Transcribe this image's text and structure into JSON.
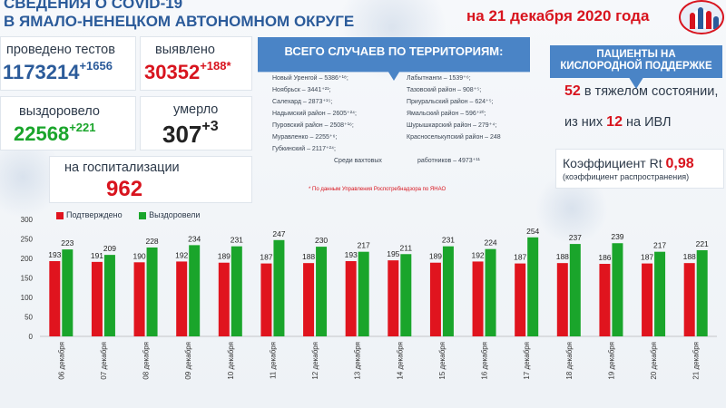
{
  "header": {
    "title_line1": "СВЕДЕНИЯ О COVID-19",
    "title_line2": "В ЯМАЛО-НЕНЕЦКОМ АВТОНОМНОМ ОКРУГЕ",
    "date": "на 21 декабря 2020 года"
  },
  "stats": {
    "tests_label": "проведено тестов",
    "tests_value": "1173214",
    "tests_delta": "+1656",
    "detected_label": "выявлено",
    "detected_value": "30352",
    "detected_delta": "+188*",
    "recovered_label": "выздоровело",
    "recovered_value": "22568",
    "recovered_delta": "+221",
    "died_label": "умерло",
    "died_value": "307",
    "died_delta": "+3",
    "hosp_label": "на госпитализации",
    "hosp_value": "962"
  },
  "territories": {
    "title": "ВСЕГО СЛУЧАЕВ ПО ТЕРРИТОРИЯМ:",
    "left": [
      "Новый Уренгой – 5386⁺¹⁸;",
      "Ноябрьск – 3441⁺²¹;",
      "Салехард – 2873⁺¹⁵;",
      "Надымский район – 2605⁺²⁴;",
      "Пуровский район – 2508⁺¹⁶;",
      "Муравленко – 2255⁺⁶;",
      "Губкинский – 2117⁺²⁴;"
    ],
    "right": [
      "Лабытнанги – 1539⁺⁶;",
      "Тазовский район – 908⁺⁵;",
      "Приуральский район – 624⁺⁵;",
      "Ямальский район – 596⁺²⁰;",
      "Шурышкарский район – 279⁺⁴;",
      "Красноселькупский район – 248"
    ],
    "shift_left": "Среди вахтовых",
    "shift_right": "работников – 4973⁺¹¹",
    "note": "* По данным Управления  Роспотребнадзора по ЯНАО"
  },
  "oxygen": {
    "title_line1": "ПАЦИЕНТЫ НА",
    "title_line2": "КИСЛОРОДНОЙ ПОДДЕРЖКЕ",
    "severe_value": "52",
    "severe_text": "в тяжелом состоянии,",
    "ivl_prefix": "из них",
    "ivl_value": "12",
    "ivl_suffix": "на  ИВЛ",
    "coef_label": "Коэффициент Rt",
    "coef_value": "0,98",
    "coef_sub": "(коэффициент распространения)"
  },
  "colors": {
    "red": "#e0141e",
    "green": "#1aa52b",
    "accent": "#4a84c6"
  },
  "chart_data": {
    "type": "bar",
    "categories": [
      "06 декабря",
      "07 декабря",
      "08 декабря",
      "09 декабря",
      "10 декабря",
      "11 декабря",
      "12 декабря",
      "13 декабря",
      "14 декабря",
      "15 декабря",
      "16 декабря",
      "17 декабря",
      "18 декабря",
      "19 декабря",
      "20 декабря",
      "21 декабря"
    ],
    "series": [
      {
        "name": "Подтверждено",
        "color": "#e0141e",
        "values": [
          193,
          191,
          190,
          192,
          189,
          187,
          188,
          193,
          195,
          189,
          192,
          187,
          188,
          186,
          187,
          188
        ]
      },
      {
        "name": "Выздоровели",
        "color": "#1aa52b",
        "values": [
          223,
          209,
          228,
          234,
          231,
          247,
          230,
          217,
          211,
          231,
          224,
          254,
          237,
          239,
          217,
          221
        ]
      }
    ],
    "yticks": [
      0,
      50,
      100,
      150,
      200,
      250,
      300
    ],
    "ylim": [
      0,
      300
    ],
    "legend": "top-left",
    "grid": false
  }
}
